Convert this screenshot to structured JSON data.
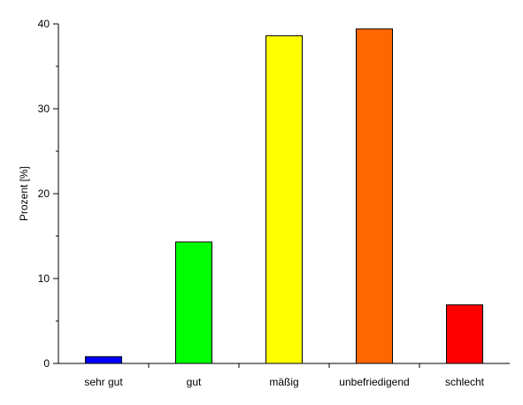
{
  "chart_data": {
    "type": "bar",
    "categories": [
      "sehr gut",
      "gut",
      "mäßig",
      "unbefriedigend",
      "schlecht"
    ],
    "values": [
      0.8,
      14.3,
      38.6,
      39.4,
      6.9
    ],
    "colors": [
      "#0000ff",
      "#00ff00",
      "#ffff00",
      "#ff6600",
      "#ff0000"
    ],
    "ylabel": "Prozent [%]",
    "ylim": [
      0,
      40
    ],
    "yticks": [
      "0",
      "10",
      "20",
      "30",
      "40"
    ],
    "grid": false,
    "legend": "none"
  }
}
